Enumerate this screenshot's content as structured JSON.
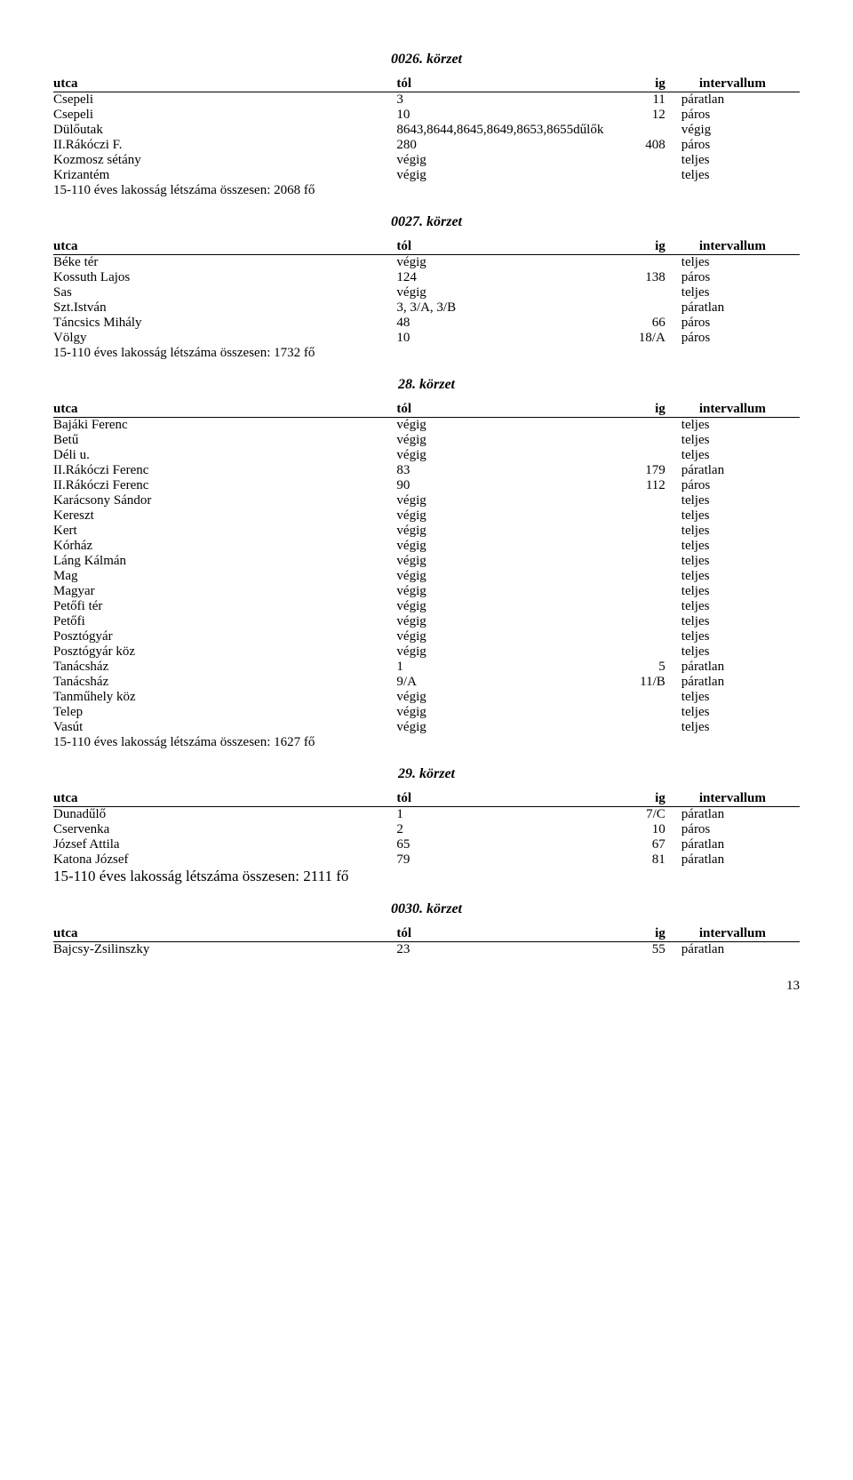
{
  "columns": {
    "utca": "utca",
    "tol": "tól",
    "ig": "ig",
    "intervallum": "intervallum"
  },
  "sections": [
    {
      "title": "0026.  körzet",
      "rows": [
        {
          "utca": "Csepeli",
          "tol": "3",
          "ig": "11",
          "int": "páratlan"
        },
        {
          "utca": "Csepeli",
          "tol": "10",
          "ig": "12",
          "int": "páros"
        },
        {
          "utca": "Dülőutak",
          "tol": "8643,8644,8645,8649,8653,8655dűlők",
          "ig": "",
          "int": "végig"
        },
        {
          "utca": "II.Rákóczi F.",
          "tol": "280",
          "ig": "408",
          "int": "páros"
        },
        {
          "utca": "Kozmosz sétány",
          "tol": "végig",
          "ig": "",
          "int": "teljes"
        },
        {
          "utca": "Krizantém",
          "tol": "végig",
          "ig": "",
          "int": "teljes"
        }
      ],
      "pop": "15-110 éves lakosság létszáma összesen: 2068 fő",
      "pop_large": false
    },
    {
      "title": "0027.  körzet",
      "rows": [
        {
          "utca": "Béke tér",
          "tol": "végig",
          "ig": "",
          "int": "teljes"
        },
        {
          "utca": "Kossuth Lajos",
          "tol": "124",
          "ig": "138",
          "int": "páros"
        },
        {
          "utca": "Sas",
          "tol": "végig",
          "ig": "",
          "int": "teljes"
        },
        {
          "utca": "Szt.István",
          "tol": "3, 3/A, 3/B",
          "ig": "",
          "int": "páratlan"
        },
        {
          "utca": "Táncsics Mihály",
          "tol": "48",
          "ig": "66",
          "int": "páros"
        },
        {
          "utca": "Völgy",
          "tol": "10",
          "ig": "18/A",
          "int": "páros"
        }
      ],
      "pop": "15-110 éves lakosság létszáma összesen: 1732 fő",
      "pop_large": false
    },
    {
      "title": "28. körzet",
      "rows": [
        {
          "utca": "Bajáki Ferenc",
          "tol": "végig",
          "ig": "",
          "int": "teljes"
        },
        {
          "utca": "Betű",
          "tol": "végig",
          "ig": "",
          "int": "teljes"
        },
        {
          "utca": "Déli u.",
          "tol": "végig",
          "ig": "",
          "int": "teljes"
        },
        {
          "utca": "II.Rákóczi Ferenc",
          "tol": "83",
          "ig": "179",
          "int": "páratlan"
        },
        {
          "utca": "II.Rákóczi Ferenc",
          "tol": "90",
          "ig": "112",
          "int": "páros"
        },
        {
          "utca": "Karácsony Sándor",
          "tol": "végig",
          "ig": "",
          "int": "teljes"
        },
        {
          "utca": "Kereszt",
          "tol": "végig",
          "ig": "",
          "int": "teljes"
        },
        {
          "utca": "Kert",
          "tol": "végig",
          "ig": "",
          "int": "teljes"
        },
        {
          "utca": "Kórház",
          "tol": "végig",
          "ig": "",
          "int": "teljes"
        },
        {
          "utca": "Láng Kálmán",
          "tol": "végig",
          "ig": "",
          "int": "teljes"
        },
        {
          "utca": "Mag",
          "tol": "végig",
          "ig": "",
          "int": "teljes"
        },
        {
          "utca": "Magyar",
          "tol": "végig",
          "ig": "",
          "int": "teljes"
        },
        {
          "utca": "Petőfi tér",
          "tol": "végig",
          "ig": "",
          "int": "teljes"
        },
        {
          "utca": "Petőfi",
          "tol": "végig",
          "ig": "",
          "int": "teljes"
        },
        {
          "utca": "Posztógyár",
          "tol": "végig",
          "ig": "",
          "int": "teljes"
        },
        {
          "utca": "Posztógyár köz",
          "tol": "végig",
          "ig": "",
          "int": "teljes"
        },
        {
          "utca": "Tanácsház",
          "tol": "1",
          "ig": "5",
          "int": "páratlan"
        },
        {
          "utca": "Tanácsház",
          "tol": "9/A",
          "ig": "11/B",
          "int": "páratlan"
        },
        {
          "utca": "Tanműhely köz",
          "tol": "végig",
          "ig": "",
          "int": "teljes"
        },
        {
          "utca": "Telep",
          "tol": "végig",
          "ig": "",
          "int": "teljes"
        },
        {
          "utca": "Vasút",
          "tol": "végig",
          "ig": "",
          "int": "teljes"
        }
      ],
      "pop": "15-110 éves lakosság létszáma összesen: 1627 fő",
      "pop_large": false
    },
    {
      "title": "29. körzet",
      "rows": [
        {
          "utca": "Dunadűlő",
          "tol": "1",
          "ig": "7/C",
          "int": "páratlan"
        },
        {
          "utca": "Cservenka",
          "tol": "2",
          "ig": "10",
          "int": "páros"
        },
        {
          "utca": "József Attila",
          "tol": "65",
          "ig": "67",
          "int": "páratlan"
        },
        {
          "utca": "Katona József",
          "tol": "79",
          "ig": "81",
          "int": "páratlan"
        }
      ],
      "pop": "15-110 éves lakosság létszáma összesen: 2111 fő",
      "pop_large": true
    },
    {
      "title": "0030. körzet",
      "rows": [
        {
          "utca": "Bajcsy-Zsilinszky",
          "tol": "23",
          "ig": "55",
          "int": "páratlan"
        }
      ],
      "pop": "",
      "pop_large": false
    }
  ],
  "page_number": "13"
}
